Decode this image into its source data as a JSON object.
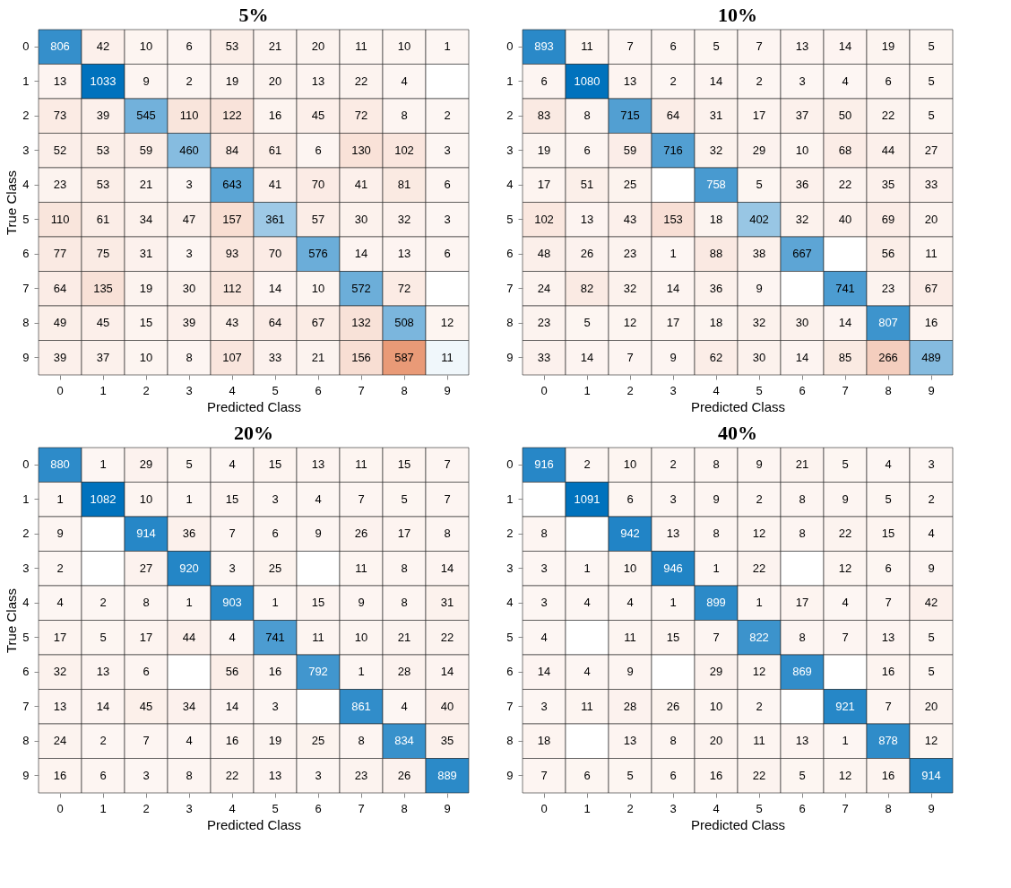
{
  "chart_data": [
    {
      "type": "heatmap",
      "title": "5%",
      "xlabel": "Predicted Class",
      "ylabel": "True Class",
      "data_labels": true,
      "categories": [
        "0",
        "1",
        "2",
        "3",
        "4",
        "5",
        "6",
        "7",
        "8",
        "9"
      ],
      "y_categories": [
        "0",
        "1",
        "2",
        "3",
        "4",
        "5",
        "6",
        "7",
        "8",
        "9"
      ],
      "cells": [
        [
          806,
          42,
          10,
          6,
          53,
          21,
          20,
          11,
          10,
          1
        ],
        [
          13,
          1033,
          9,
          2,
          19,
          20,
          13,
          22,
          4,
          null
        ],
        [
          73,
          39,
          545,
          110,
          122,
          16,
          45,
          72,
          8,
          2
        ],
        [
          52,
          53,
          59,
          460,
          84,
          61,
          6,
          130,
          102,
          3
        ],
        [
          23,
          53,
          21,
          3,
          643,
          41,
          70,
          41,
          81,
          6
        ],
        [
          110,
          61,
          34,
          47,
          157,
          361,
          57,
          30,
          32,
          3
        ],
        [
          77,
          75,
          31,
          3,
          93,
          70,
          576,
          14,
          13,
          6
        ],
        [
          64,
          135,
          19,
          30,
          112,
          14,
          10,
          572,
          72,
          null
        ],
        [
          49,
          45,
          15,
          39,
          43,
          64,
          67,
          132,
          508,
          12
        ],
        [
          39,
          37,
          10,
          8,
          107,
          33,
          21,
          156,
          587,
          11
        ]
      ]
    },
    {
      "type": "heatmap",
      "title": "10%",
      "xlabel": "Predicted Class",
      "data_labels": true,
      "categories": [
        "0",
        "1",
        "2",
        "3",
        "4",
        "5",
        "6",
        "7",
        "8",
        "9"
      ],
      "y_categories": [
        "0",
        "1",
        "2",
        "3",
        "4",
        "5",
        "6",
        "7",
        "8",
        "9"
      ],
      "cells": [
        [
          893,
          11,
          7,
          6,
          5,
          7,
          13,
          14,
          19,
          5
        ],
        [
          6,
          1080,
          13,
          2,
          14,
          2,
          3,
          4,
          6,
          5
        ],
        [
          83,
          8,
          715,
          64,
          31,
          17,
          37,
          50,
          22,
          5
        ],
        [
          19,
          6,
          59,
          716,
          32,
          29,
          10,
          68,
          44,
          27
        ],
        [
          17,
          51,
          25,
          null,
          758,
          5,
          36,
          22,
          35,
          33
        ],
        [
          102,
          13,
          43,
          153,
          18,
          402,
          32,
          40,
          69,
          20
        ],
        [
          48,
          26,
          23,
          1,
          88,
          38,
          667,
          null,
          56,
          11
        ],
        [
          24,
          82,
          32,
          14,
          36,
          9,
          null,
          741,
          23,
          67
        ],
        [
          23,
          5,
          12,
          17,
          18,
          32,
          30,
          14,
          807,
          16
        ],
        [
          33,
          14,
          7,
          9,
          62,
          30,
          14,
          85,
          266,
          489
        ]
      ]
    },
    {
      "type": "heatmap",
      "title": "20%",
      "xlabel": "Predicted Class",
      "ylabel": "True Class",
      "data_labels": true,
      "categories": [
        "0",
        "1",
        "2",
        "3",
        "4",
        "5",
        "6",
        "7",
        "8",
        "9"
      ],
      "y_categories": [
        "0",
        "1",
        "2",
        "3",
        "4",
        "5",
        "6",
        "7",
        "8",
        "9"
      ],
      "cells": [
        [
          880,
          1,
          29,
          5,
          4,
          15,
          13,
          11,
          15,
          7
        ],
        [
          1,
          1082,
          10,
          1,
          15,
          3,
          4,
          7,
          5,
          7
        ],
        [
          9,
          null,
          914,
          36,
          7,
          6,
          9,
          26,
          17,
          8
        ],
        [
          2,
          null,
          27,
          920,
          3,
          25,
          null,
          11,
          8,
          14
        ],
        [
          4,
          2,
          8,
          1,
          903,
          1,
          15,
          9,
          8,
          31
        ],
        [
          17,
          5,
          17,
          44,
          4,
          741,
          11,
          10,
          21,
          22
        ],
        [
          32,
          13,
          6,
          null,
          56,
          16,
          792,
          1,
          28,
          14
        ],
        [
          13,
          14,
          45,
          34,
          14,
          3,
          null,
          861,
          4,
          40
        ],
        [
          24,
          2,
          7,
          4,
          16,
          19,
          25,
          8,
          834,
          35
        ],
        [
          16,
          6,
          3,
          8,
          22,
          13,
          3,
          23,
          26,
          889
        ]
      ]
    },
    {
      "type": "heatmap",
      "title": "40%",
      "xlabel": "Predicted Class",
      "data_labels": true,
      "categories": [
        "0",
        "1",
        "2",
        "3",
        "4",
        "5",
        "6",
        "7",
        "8",
        "9"
      ],
      "y_categories": [
        "0",
        "1",
        "2",
        "3",
        "4",
        "5",
        "6",
        "7",
        "8",
        "9"
      ],
      "cells": [
        [
          916,
          2,
          10,
          2,
          8,
          9,
          21,
          5,
          4,
          3
        ],
        [
          null,
          1091,
          6,
          3,
          9,
          2,
          8,
          9,
          5,
          2
        ],
        [
          8,
          null,
          942,
          13,
          8,
          12,
          8,
          22,
          15,
          4
        ],
        [
          3,
          1,
          10,
          946,
          1,
          22,
          null,
          12,
          6,
          9
        ],
        [
          3,
          4,
          4,
          1,
          899,
          1,
          17,
          4,
          7,
          42
        ],
        [
          4,
          null,
          11,
          15,
          7,
          822,
          8,
          7,
          13,
          5
        ],
        [
          14,
          4,
          9,
          null,
          29,
          12,
          869,
          null,
          16,
          5
        ],
        [
          3,
          11,
          28,
          26,
          10,
          2,
          null,
          921,
          7,
          20
        ],
        [
          18,
          null,
          13,
          8,
          20,
          11,
          13,
          1,
          878,
          12
        ],
        [
          7,
          6,
          5,
          6,
          16,
          22,
          5,
          12,
          16,
          914
        ]
      ]
    }
  ]
}
